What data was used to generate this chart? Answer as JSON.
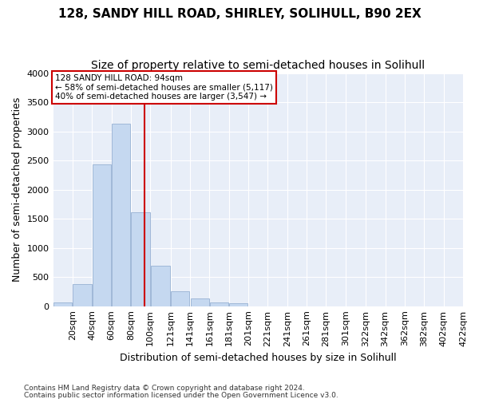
{
  "title1": "128, SANDY HILL ROAD, SHIRLEY, SOLIHULL, B90 2EX",
  "title2": "Size of property relative to semi-detached houses in Solihull",
  "xlabel": "Distribution of semi-detached houses by size in Solihull",
  "ylabel": "Number of semi-detached properties",
  "footnote1": "Contains HM Land Registry data © Crown copyright and database right 2024.",
  "footnote2": "Contains public sector information licensed under the Open Government Licence v3.0.",
  "annotation_line1": "128 SANDY HILL ROAD: 94sqm",
  "annotation_line2": "← 58% of semi-detached houses are smaller (5,117)",
  "annotation_line3": "40% of semi-detached houses are larger (3,547) →",
  "property_size": 94,
  "bin_edges": [
    0,
    20,
    40,
    60,
    80,
    100,
    121,
    141,
    161,
    181,
    201,
    221,
    241,
    261,
    281,
    301,
    322,
    342,
    362,
    382,
    402,
    422
  ],
  "bin_labels": [
    "20sqm",
    "40sqm",
    "60sqm",
    "80sqm",
    "100sqm",
    "121sqm",
    "141sqm",
    "161sqm",
    "181sqm",
    "201sqm",
    "221sqm",
    "241sqm",
    "261sqm",
    "281sqm",
    "301sqm",
    "322sqm",
    "342sqm",
    "362sqm",
    "382sqm",
    "402sqm",
    "422sqm"
  ],
  "bar_heights": [
    60,
    380,
    2430,
    3130,
    1610,
    700,
    260,
    130,
    70,
    50,
    0,
    0,
    0,
    0,
    0,
    0,
    0,
    0,
    0,
    0,
    0
  ],
  "bar_color": "#c5d8f0",
  "bar_edge_color": "#a0b8d8",
  "vline_color": "#cc0000",
  "vline_x": 94,
  "annotation_box_color": "#cc0000",
  "annotation_text_color": "#000000",
  "background_color": "#e8eef8",
  "ylim": [
    0,
    4000
  ],
  "yticks": [
    0,
    500,
    1000,
    1500,
    2000,
    2500,
    3000,
    3500,
    4000
  ],
  "grid_color": "#ffffff",
  "title_fontsize": 11,
  "subtitle_fontsize": 10,
  "axis_label_fontsize": 9,
  "tick_fontsize": 8
}
